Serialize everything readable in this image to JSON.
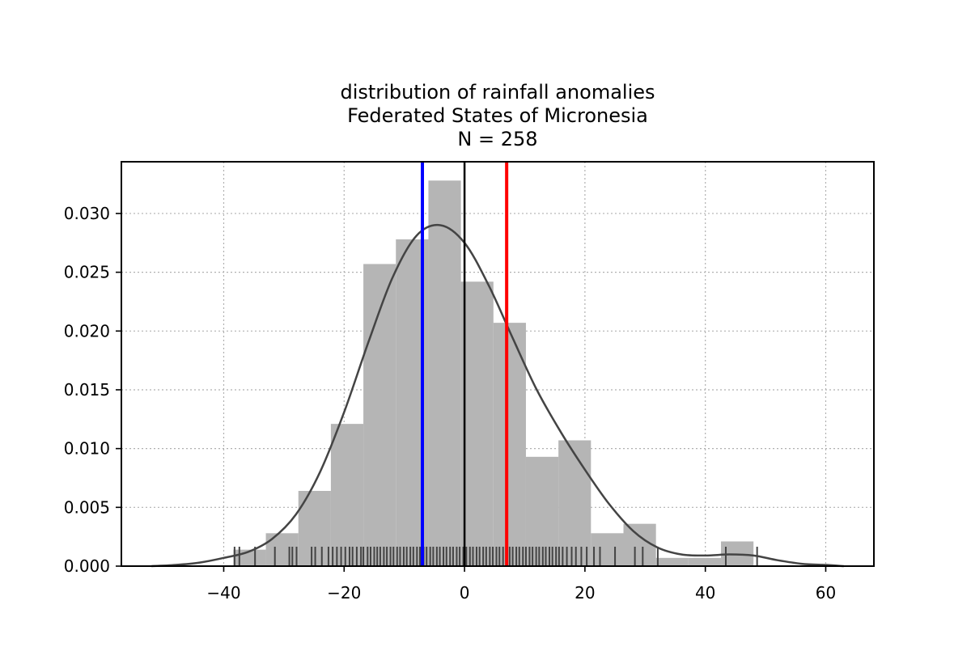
{
  "chart_data": {
    "type": "histogram",
    "title_lines": [
      "distribution of rainfall anomalies",
      "Federated States of Micronesia",
      "N = 258"
    ],
    "xlabel": "",
    "ylabel": "",
    "xlim": [
      -57,
      68
    ],
    "ylim": [
      0,
      0.0344
    ],
    "x_ticks": [
      -40,
      -20,
      0,
      20,
      40,
      60
    ],
    "x_tick_labels": [
      "−40",
      "−20",
      "0",
      "20",
      "40",
      "60"
    ],
    "y_ticks": [
      0.0,
      0.005,
      0.01,
      0.015,
      0.02,
      0.025,
      0.03
    ],
    "y_tick_labels": [
      "0.000",
      "0.005",
      "0.010",
      "0.015",
      "0.020",
      "0.025",
      "0.030"
    ],
    "grid": true,
    "bins": [
      {
        "x0": -38.4,
        "x1": -33.0,
        "density": 0.0014
      },
      {
        "x0": -33.0,
        "x1": -27.6,
        "density": 0.0028
      },
      {
        "x0": -27.6,
        "x1": -22.2,
        "density": 0.0064
      },
      {
        "x0": -22.2,
        "x1": -16.8,
        "density": 0.0121
      },
      {
        "x0": -16.8,
        "x1": -11.4,
        "density": 0.0257
      },
      {
        "x0": -11.4,
        "x1": -6.0,
        "density": 0.0278
      },
      {
        "x0": -6.0,
        "x1": -0.6,
        "density": 0.0328
      },
      {
        "x0": -0.6,
        "x1": 4.8,
        "density": 0.0242
      },
      {
        "x0": 4.8,
        "x1": 10.2,
        "density": 0.0207
      },
      {
        "x0": 10.2,
        "x1": 15.6,
        "density": 0.0093
      },
      {
        "x0": 15.6,
        "x1": 21.0,
        "density": 0.0107
      },
      {
        "x0": 21.0,
        "x1": 26.4,
        "density": 0.0028
      },
      {
        "x0": 26.4,
        "x1": 31.8,
        "density": 0.0036
      },
      {
        "x0": 31.8,
        "x1": 37.2,
        "density": 0.0007
      },
      {
        "x0": 37.2,
        "x1": 42.6,
        "density": 0.0007
      },
      {
        "x0": 42.6,
        "x1": 48.0,
        "density": 0.0021
      }
    ],
    "kde": {
      "x": [
        -52,
        -48,
        -44,
        -40,
        -36,
        -32,
        -28,
        -24,
        -20,
        -16,
        -12,
        -8,
        -4,
        0,
        4,
        8,
        12,
        16,
        20,
        24,
        28,
        32,
        36,
        40,
        44,
        48,
        52,
        56,
        60,
        63
      ],
      "y": [
        0.0,
        0.0001,
        0.0003,
        0.0007,
        0.0012,
        0.0023,
        0.0044,
        0.008,
        0.0131,
        0.019,
        0.0245,
        0.0281,
        0.029,
        0.0275,
        0.0239,
        0.0194,
        0.015,
        0.0114,
        0.0082,
        0.0053,
        0.003,
        0.0016,
        0.001,
        0.0009,
        0.001,
        0.0009,
        0.0005,
        0.0002,
        0.0001,
        0.0
      ]
    },
    "rug_values": [
      -38.2,
      -37.4,
      -34.8,
      -31.5,
      -29.1,
      -28.6,
      -27.9,
      -25.4,
      -24.8,
      -23.7,
      -22.6,
      -21.9,
      -21.2,
      -20.5,
      -19.8,
      -19.1,
      -18.6,
      -17.9,
      -17.2,
      -16.8,
      -16.1,
      -15.6,
      -15.0,
      -14.5,
      -14.0,
      -13.4,
      -12.9,
      -12.3,
      -11.8,
      -11.2,
      -10.7,
      -10.1,
      -9.6,
      -9.0,
      -8.5,
      -7.9,
      -7.4,
      -6.8,
      -6.3,
      -5.7,
      -5.2,
      -4.6,
      -4.1,
      -3.5,
      -3.0,
      -2.4,
      -1.9,
      -1.3,
      -0.8,
      -0.2,
      0.3,
      0.9,
      1.4,
      2.0,
      2.5,
      3.1,
      3.6,
      4.2,
      4.7,
      5.3,
      5.8,
      6.4,
      6.9,
      7.5,
      8.0,
      8.6,
      9.1,
      9.7,
      10.2,
      10.8,
      11.3,
      11.9,
      12.4,
      13.0,
      13.5,
      14.1,
      14.6,
      15.2,
      15.7,
      16.3,
      17.0,
      17.8,
      18.5,
      19.4,
      20.3,
      21.5,
      22.5,
      25.0,
      28.3,
      29.6,
      32.1,
      43.4,
      48.6
    ],
    "vlines": [
      {
        "x": -7.0,
        "color": "#0000ff"
      },
      {
        "x": 0.0,
        "color": "#000000"
      },
      {
        "x": 7.0,
        "color": "#ff0000"
      }
    ],
    "colors": {
      "bars": "#b5b5b5",
      "kde": "#444444",
      "rug": "#444444",
      "grid": "#b0b0b0"
    }
  }
}
